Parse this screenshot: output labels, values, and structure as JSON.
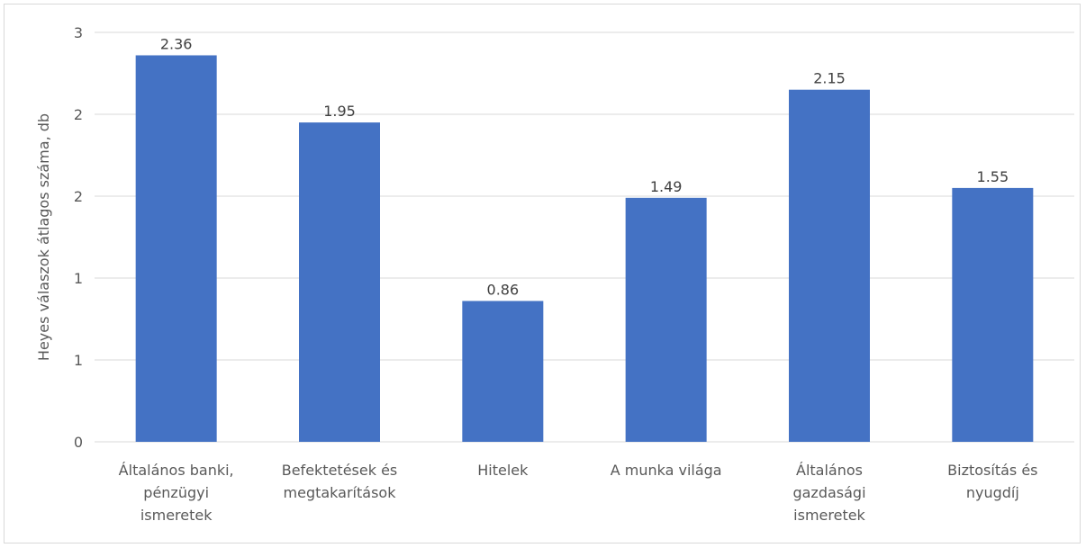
{
  "chart_data": {
    "type": "bar",
    "title": "",
    "xlabel": "",
    "ylabel": "Heyes válaszok átlagos száma, db",
    "categories": [
      "Általános banki, pénzügyi ismeretek",
      "Befektetések és megtakarítások",
      "Hitelek",
      "A munka világa",
      "Általános gazdasági ismeretek",
      "Biztosítás és nyugdíj"
    ],
    "category_lines": [
      [
        "Általános banki,",
        "pénzügyi",
        "ismeretek"
      ],
      [
        "Befektetések és",
        "megtakarítások"
      ],
      [
        "Hitelek"
      ],
      [
        "A munka világa"
      ],
      [
        "Általános",
        "gazdasági",
        "ismeretek"
      ],
      [
        "Biztosítás és",
        "nyugdíj"
      ]
    ],
    "values": [
      2.36,
      1.95,
      0.86,
      1.49,
      2.15,
      1.55
    ],
    "data_labels": [
      "2.36",
      "1.95",
      "0.86",
      "1.49",
      "2.15",
      "1.55"
    ],
    "ylim": [
      0,
      2.5
    ],
    "y_tick_values": [
      0,
      0.5,
      1,
      1.5,
      2,
      2.5
    ],
    "y_tick_labels": [
      "0",
      "1",
      "1",
      "2",
      "2",
      "3"
    ],
    "grid": true,
    "legend": "none",
    "bar_color": "#4472C4",
    "grid_color": "#d9d9d9",
    "text_color": "#595959"
  }
}
